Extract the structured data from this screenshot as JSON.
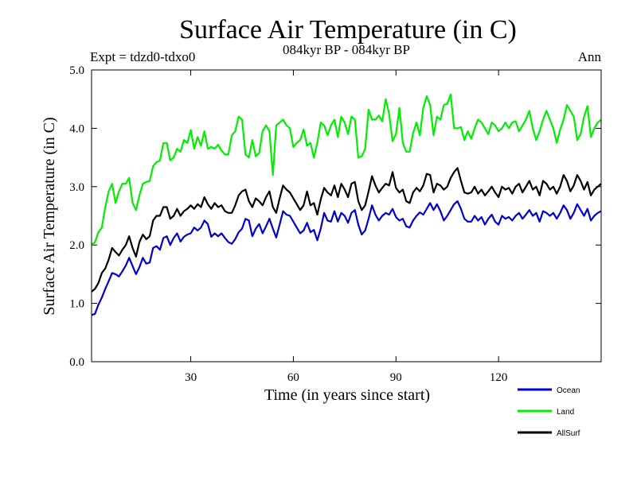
{
  "chart_data": {
    "type": "line",
    "title": "Surface Air Temperature (in C)",
    "subtitle": "084kyr BP - 084kyr BP",
    "left_label": "Expt = tdzd0-tdxo0",
    "right_label": "Ann",
    "xlabel": "Time (in years since start)",
    "ylabel": "Surface Air Temperature (in C)",
    "xlim": [
      1,
      150
    ],
    "ylim": [
      0,
      5
    ],
    "xticks": [
      30,
      60,
      90,
      120
    ],
    "xtick_labels": [
      "30",
      "60",
      "90",
      "120"
    ],
    "yticks": [
      0,
      1,
      2,
      3,
      4,
      5
    ],
    "ytick_labels": [
      "0.0",
      "1.0",
      "2.0",
      "3.0",
      "4.0",
      "5.0"
    ],
    "legend_position": "bottom-right",
    "series": [
      {
        "name": "Ocean",
        "color": "#0000cc",
        "x": [
          1,
          2,
          3,
          4,
          5,
          6,
          7,
          8,
          9,
          10,
          11,
          12,
          13,
          14,
          15,
          16,
          17,
          18,
          19,
          20,
          21,
          22,
          23,
          24,
          25,
          26,
          27,
          28,
          29,
          30,
          31,
          32,
          33,
          34,
          35,
          36,
          37,
          38,
          39,
          40,
          41,
          42,
          43,
          44,
          45,
          46,
          47,
          48,
          49,
          50,
          51,
          52,
          53,
          54,
          55,
          56,
          57,
          58,
          59,
          60,
          61,
          62,
          63,
          64,
          65,
          66,
          67,
          68,
          69,
          70,
          71,
          72,
          73,
          74,
          75,
          76,
          77,
          78,
          79,
          80,
          81,
          82,
          83,
          84,
          85,
          86,
          87,
          88,
          89,
          90,
          91,
          92,
          93,
          94,
          95,
          96,
          97,
          98,
          99,
          100,
          101,
          102,
          103,
          104,
          105,
          106,
          107,
          108,
          109,
          110,
          111,
          112,
          113,
          114,
          115,
          116,
          117,
          118,
          119,
          120,
          121,
          122,
          123,
          124,
          125,
          126,
          127,
          128,
          129,
          130,
          131,
          132,
          133,
          134,
          135,
          136,
          137,
          138,
          139,
          140,
          141,
          142,
          143,
          144,
          145,
          146,
          147,
          148,
          149,
          150
        ],
        "values": [
          0.8,
          0.82,
          0.98,
          1.1,
          1.25,
          1.38,
          1.52,
          1.5,
          1.46,
          1.55,
          1.65,
          1.78,
          1.64,
          1.5,
          1.62,
          1.78,
          1.68,
          1.7,
          1.95,
          1.98,
          1.92,
          2.12,
          2.15,
          2.0,
          2.12,
          2.2,
          2.06,
          2.14,
          2.18,
          2.2,
          2.3,
          2.25,
          2.3,
          2.42,
          2.36,
          2.14,
          2.2,
          2.15,
          2.2,
          2.12,
          2.05,
          2.02,
          2.1,
          2.22,
          2.28,
          2.45,
          2.42,
          2.15,
          2.28,
          2.36,
          2.2,
          2.32,
          2.45,
          2.28,
          2.13,
          2.35,
          2.58,
          2.52,
          2.5,
          2.4,
          2.3,
          2.2,
          2.25,
          2.38,
          2.22,
          2.26,
          2.08,
          2.28,
          2.55,
          2.42,
          2.4,
          2.58,
          2.4,
          2.55,
          2.5,
          2.38,
          2.55,
          2.6,
          2.35,
          2.18,
          2.25,
          2.45,
          2.68,
          2.52,
          2.42,
          2.5,
          2.55,
          2.52,
          2.62,
          2.48,
          2.42,
          2.45,
          2.32,
          2.3,
          2.42,
          2.5,
          2.56,
          2.52,
          2.62,
          2.72,
          2.6,
          2.7,
          2.58,
          2.42,
          2.5,
          2.6,
          2.7,
          2.75,
          2.62,
          2.45,
          2.4,
          2.4,
          2.5,
          2.42,
          2.48,
          2.35,
          2.45,
          2.52,
          2.4,
          2.35,
          2.5,
          2.45,
          2.48,
          2.42,
          2.5,
          2.55,
          2.45,
          2.52,
          2.6,
          2.5,
          2.55,
          2.4,
          2.58,
          2.55,
          2.5,
          2.55,
          2.45,
          2.55,
          2.68,
          2.6,
          2.45,
          2.55,
          2.7,
          2.6,
          2.5,
          2.62,
          2.42,
          2.5,
          2.55,
          2.58
        ]
      },
      {
        "name": "Land",
        "color": "#00ee00",
        "x": [
          1,
          2,
          3,
          4,
          5,
          6,
          7,
          8,
          9,
          10,
          11,
          12,
          13,
          14,
          15,
          16,
          17,
          18,
          19,
          20,
          21,
          22,
          23,
          24,
          25,
          26,
          27,
          28,
          29,
          30,
          31,
          32,
          33,
          34,
          35,
          36,
          37,
          38,
          39,
          40,
          41,
          42,
          43,
          44,
          45,
          46,
          47,
          48,
          49,
          50,
          51,
          52,
          53,
          54,
          55,
          56,
          57,
          58,
          59,
          60,
          61,
          62,
          63,
          64,
          65,
          66,
          67,
          68,
          69,
          70,
          71,
          72,
          73,
          74,
          75,
          76,
          77,
          78,
          79,
          80,
          81,
          82,
          83,
          84,
          85,
          86,
          87,
          88,
          89,
          90,
          91,
          92,
          93,
          94,
          95,
          96,
          97,
          98,
          99,
          100,
          101,
          102,
          103,
          104,
          105,
          106,
          107,
          108,
          109,
          110,
          111,
          112,
          113,
          114,
          115,
          116,
          117,
          118,
          119,
          120,
          121,
          122,
          123,
          124,
          125,
          126,
          127,
          128,
          129,
          130,
          131,
          132,
          133,
          134,
          135,
          136,
          137,
          138,
          139,
          140,
          141,
          142,
          143,
          144,
          145,
          146,
          147,
          148,
          149,
          150
        ],
        "values": [
          2.0,
          2.05,
          2.22,
          2.3,
          2.65,
          2.92,
          3.05,
          2.72,
          2.92,
          3.05,
          3.05,
          3.15,
          2.72,
          2.6,
          2.85,
          3.05,
          3.08,
          3.1,
          3.35,
          3.42,
          3.45,
          3.75,
          3.75,
          3.45,
          3.5,
          3.65,
          3.6,
          3.8,
          3.75,
          3.97,
          3.65,
          3.85,
          3.7,
          3.95,
          3.65,
          3.68,
          3.65,
          3.72,
          3.62,
          3.55,
          3.55,
          3.88,
          3.95,
          4.2,
          4.15,
          3.55,
          3.5,
          3.8,
          3.52,
          3.58,
          3.95,
          4.05,
          3.95,
          3.2,
          4.05,
          4.1,
          4.15,
          4.05,
          4.0,
          3.68,
          3.75,
          3.8,
          3.98,
          3.7,
          3.75,
          3.5,
          3.75,
          4.1,
          4.05,
          3.88,
          4.05,
          4.15,
          3.85,
          4.2,
          4.1,
          3.9,
          4.2,
          4.15,
          3.5,
          3.52,
          3.65,
          4.32,
          4.15,
          4.15,
          4.22,
          4.12,
          4.5,
          4.25,
          3.78,
          3.9,
          4.35,
          3.75,
          3.6,
          3.6,
          3.92,
          4.1,
          3.88,
          4.35,
          4.55,
          4.4,
          3.88,
          4.2,
          4.15,
          4.4,
          4.42,
          4.58,
          4.0,
          4.0,
          4.02,
          3.8,
          3.95,
          3.82,
          4.0,
          4.15,
          4.1,
          4.0,
          3.9,
          4.1,
          4.05,
          3.95,
          4.0,
          4.1,
          4.0,
          4.1,
          4.12,
          3.95,
          4.05,
          4.15,
          4.3,
          4.0,
          3.8,
          3.95,
          4.15,
          4.3,
          4.15,
          4.0,
          3.75,
          3.98,
          4.15,
          4.4,
          4.3,
          4.2,
          3.8,
          3.9,
          4.2,
          4.38,
          3.85,
          4.0,
          4.1,
          4.15
        ]
      },
      {
        "name": "AllSurf",
        "color": "#000000",
        "x": [
          1,
          2,
          3,
          4,
          5,
          6,
          7,
          8,
          9,
          10,
          11,
          12,
          13,
          14,
          15,
          16,
          17,
          18,
          19,
          20,
          21,
          22,
          23,
          24,
          25,
          26,
          27,
          28,
          29,
          30,
          31,
          32,
          33,
          34,
          35,
          36,
          37,
          38,
          39,
          40,
          41,
          42,
          43,
          44,
          45,
          46,
          47,
          48,
          49,
          50,
          51,
          52,
          53,
          54,
          55,
          56,
          57,
          58,
          59,
          60,
          61,
          62,
          63,
          64,
          65,
          66,
          67,
          68,
          69,
          70,
          71,
          72,
          73,
          74,
          75,
          76,
          77,
          78,
          79,
          80,
          81,
          82,
          83,
          84,
          85,
          86,
          87,
          88,
          89,
          90,
          91,
          92,
          93,
          94,
          95,
          96,
          97,
          98,
          99,
          100,
          101,
          102,
          103,
          104,
          105,
          106,
          107,
          108,
          109,
          110,
          111,
          112,
          113,
          114,
          115,
          116,
          117,
          118,
          119,
          120,
          121,
          122,
          123,
          124,
          125,
          126,
          127,
          128,
          129,
          130,
          131,
          132,
          133,
          134,
          135,
          136,
          137,
          138,
          139,
          140,
          141,
          142,
          143,
          144,
          145,
          146,
          147,
          148,
          149,
          150
        ],
        "values": [
          1.2,
          1.25,
          1.35,
          1.52,
          1.6,
          1.75,
          1.95,
          1.88,
          1.82,
          1.92,
          2.0,
          2.15,
          1.95,
          1.8,
          2.05,
          2.18,
          2.1,
          2.15,
          2.42,
          2.5,
          2.5,
          2.65,
          2.65,
          2.45,
          2.5,
          2.62,
          2.5,
          2.58,
          2.62,
          2.68,
          2.62,
          2.7,
          2.65,
          2.82,
          2.7,
          2.62,
          2.72,
          2.65,
          2.68,
          2.58,
          2.55,
          2.55,
          2.68,
          2.85,
          2.92,
          2.95,
          2.75,
          2.65,
          2.8,
          2.75,
          2.68,
          2.82,
          2.92,
          2.65,
          2.55,
          2.8,
          3.02,
          2.95,
          2.9,
          2.8,
          2.7,
          2.6,
          2.68,
          2.92,
          2.68,
          2.72,
          2.52,
          2.78,
          2.98,
          2.9,
          2.85,
          3.02,
          2.82,
          3.05,
          2.95,
          2.82,
          3.05,
          3.08,
          2.75,
          2.6,
          2.68,
          2.92,
          3.18,
          3.02,
          2.9,
          2.98,
          3.05,
          3.02,
          3.25,
          2.98,
          2.9,
          2.95,
          2.75,
          2.72,
          2.9,
          2.98,
          2.92,
          3.02,
          3.22,
          3.2,
          2.9,
          3.05,
          3.02,
          2.95,
          3.0,
          3.15,
          3.25,
          3.32,
          3.1,
          2.9,
          2.88,
          2.9,
          3.0,
          2.88,
          2.95,
          2.85,
          2.92,
          3.0,
          2.9,
          2.82,
          3.0,
          2.95,
          2.98,
          2.88,
          3.0,
          3.05,
          2.9,
          3.0,
          3.1,
          2.95,
          3.0,
          2.85,
          3.1,
          3.05,
          2.95,
          3.0,
          2.88,
          3.0,
          3.2,
          3.1,
          2.92,
          3.02,
          3.2,
          3.1,
          2.95,
          3.08,
          2.85,
          2.95,
          3.0,
          3.05
        ]
      }
    ]
  }
}
